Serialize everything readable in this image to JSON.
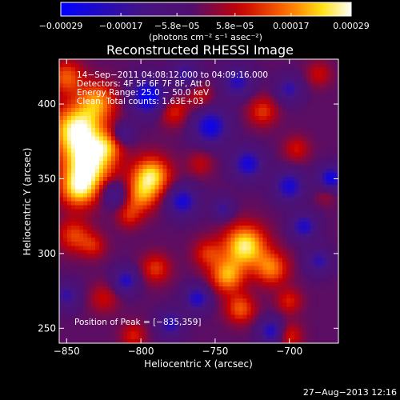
{
  "chart_data": {
    "type": "heatmap",
    "title": "Reconstructed RHESSI Image",
    "xlabel": "Heliocentric X (arcsec)",
    "ylabel": "Heliocentric Y (arcsec)",
    "xlim": [
      -855,
      -667
    ],
    "ylim": [
      240,
      430
    ],
    "x_ticks": [
      -850,
      -800,
      -750,
      -700
    ],
    "x_tick_labels": [
      "−850",
      "−800",
      "−750",
      "−700"
    ],
    "y_ticks": [
      250,
      300,
      350,
      400
    ],
    "y_tick_labels": [
      "250",
      "300",
      "350",
      "400"
    ],
    "colorbar": {
      "range": [
        -0.00029,
        0.00029
      ],
      "ticks": [
        -0.00029,
        -0.00017,
        -5.8e-05,
        5.8e-05,
        0.00017,
        0.00029
      ],
      "tick_labels": [
        "−0.00029",
        "−0.00017",
        "−5.8e−05",
        "5.8e−05",
        "0.00017",
        "0.00029"
      ],
      "unit_label": "(photons cm⁻² s⁻¹ asec⁻²)"
    },
    "annotations": [
      "14−Sep−2011 04:08:12.000 to 04:09:16.000",
      "Detectors: 4F 5F 6F 7F 8F, Att 0",
      "Energy Range: 25.0 − 50.0 keV",
      "Clean. Total counts: 1.63E+03"
    ],
    "peak_label": "Position of Peak = [−835,359]",
    "peak": [
      -835,
      359
    ],
    "blobs": [
      {
        "x": -843,
        "y": 383,
        "v": 0.00029,
        "r": 12
      },
      {
        "x": -835,
        "y": 360,
        "v": 0.00028,
        "r": 12
      },
      {
        "x": -842,
        "y": 343,
        "v": 0.00022,
        "r": 9
      },
      {
        "x": -829,
        "y": 402,
        "v": 0.00018,
        "r": 9
      },
      {
        "x": -850,
        "y": 418,
        "v": 0.00016,
        "r": 8
      },
      {
        "x": -822,
        "y": 372,
        "v": 0.00012,
        "r": 7
      },
      {
        "x": -793,
        "y": 352,
        "v": 0.00026,
        "r": 9
      },
      {
        "x": -800,
        "y": 338,
        "v": 0.00016,
        "r": 8
      },
      {
        "x": -808,
        "y": 325,
        "v": 0.0001,
        "r": 6
      },
      {
        "x": -845,
        "y": 312,
        "v": 0.00014,
        "r": 8
      },
      {
        "x": -832,
        "y": 305,
        "v": 0.0001,
        "r": 6
      },
      {
        "x": -778,
        "y": 395,
        "v": 0.00012,
        "r": 7
      },
      {
        "x": -760,
        "y": 405,
        "v": 9e-05,
        "r": 6
      },
      {
        "x": -730,
        "y": 305,
        "v": 0.00028,
        "r": 10
      },
      {
        "x": -742,
        "y": 285,
        "v": 0.00021,
        "r": 8
      },
      {
        "x": -712,
        "y": 290,
        "v": 0.00018,
        "r": 8
      },
      {
        "x": -755,
        "y": 300,
        "v": 0.00012,
        "r": 7
      },
      {
        "x": -733,
        "y": 263,
        "v": 0.00016,
        "r": 7
      },
      {
        "x": -700,
        "y": 268,
        "v": 0.00011,
        "r": 6
      },
      {
        "x": -790,
        "y": 290,
        "v": 0.00013,
        "r": 7
      },
      {
        "x": -805,
        "y": 245,
        "v": 0.00011,
        "r": 6
      },
      {
        "x": -718,
        "y": 395,
        "v": 0.00013,
        "r": 7
      },
      {
        "x": -695,
        "y": 370,
        "v": 0.0001,
        "r": 6
      },
      {
        "x": -680,
        "y": 420,
        "v": 9e-05,
        "r": 6
      },
      {
        "x": -760,
        "y": 360,
        "v": 8e-05,
        "r": 6
      },
      {
        "x": -700,
        "y": 245,
        "v": 0.00012,
        "r": 6
      },
      {
        "x": -825,
        "y": 270,
        "v": 9e-05,
        "r": 7
      },
      {
        "x": -675,
        "y": 340,
        "v": 7e-05,
        "r": 5
      },
      {
        "x": -795,
        "y": 405,
        "v": -0.00028,
        "r": 8
      },
      {
        "x": -753,
        "y": 385,
        "v": -0.00024,
        "r": 8
      },
      {
        "x": -728,
        "y": 360,
        "v": -0.00022,
        "r": 7
      },
      {
        "x": -700,
        "y": 345,
        "v": -0.00021,
        "r": 7
      },
      {
        "x": -672,
        "y": 350,
        "v": -0.00024,
        "r": 6
      },
      {
        "x": -690,
        "y": 318,
        "v": -0.0002,
        "r": 6
      },
      {
        "x": -735,
        "y": 415,
        "v": -0.00018,
        "r": 7
      },
      {
        "x": -772,
        "y": 335,
        "v": -0.00022,
        "r": 7
      },
      {
        "x": -810,
        "y": 282,
        "v": -0.00019,
        "r": 6
      },
      {
        "x": -762,
        "y": 270,
        "v": -0.0002,
        "r": 6
      },
      {
        "x": -780,
        "y": 253,
        "v": -0.00018,
        "r": 6
      },
      {
        "x": -712,
        "y": 248,
        "v": -0.0002,
        "r": 6
      },
      {
        "x": -680,
        "y": 295,
        "v": -0.00016,
        "r": 6
      },
      {
        "x": -818,
        "y": 340,
        "v": -0.00016,
        "r": 6
      },
      {
        "x": -850,
        "y": 272,
        "v": -0.00015,
        "r": 6
      },
      {
        "x": -700,
        "y": 410,
        "v": -0.00016,
        "r": 6
      },
      {
        "x": -770,
        "y": 420,
        "v": -0.00015,
        "r": 6
      },
      {
        "x": -745,
        "y": 330,
        "v": -0.00014,
        "r": 5
      },
      {
        "x": -812,
        "y": 380,
        "v": -0.00014,
        "r": 5
      }
    ]
  },
  "footer": {
    "timestamp": "27−Aug−2013 12:16"
  }
}
